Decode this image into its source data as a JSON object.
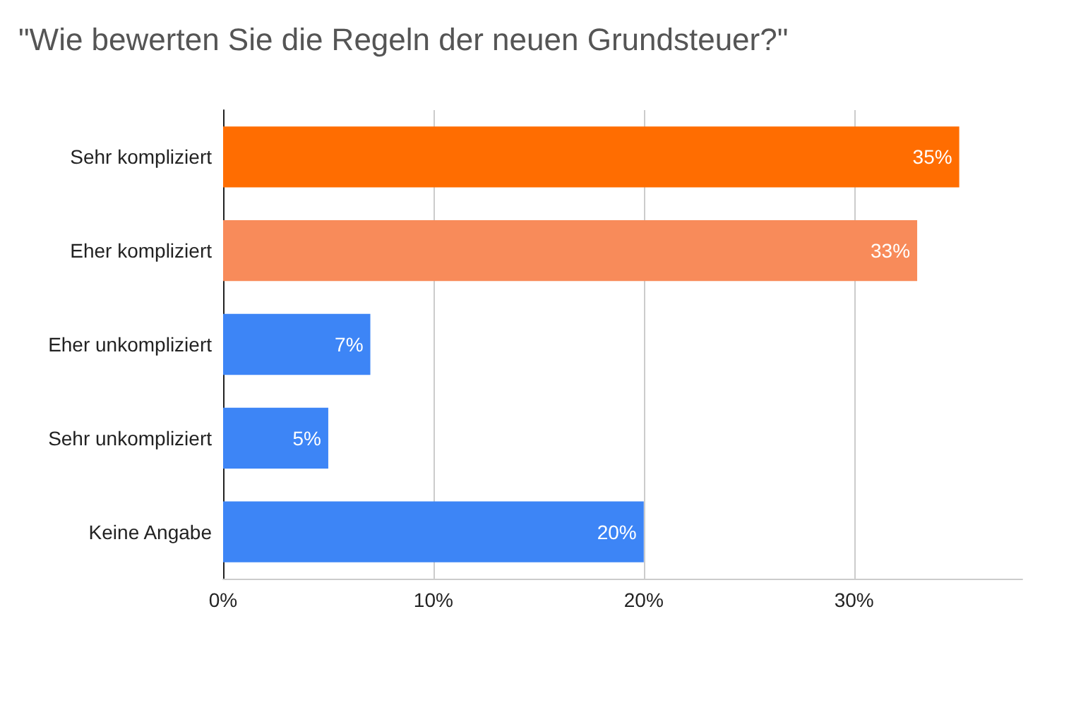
{
  "chart_data": {
    "type": "bar",
    "orientation": "horizontal",
    "title": "\"Wie bewerten Sie die Regeln der neuen Grundsteuer?\"",
    "categories": [
      "Sehr kompliziert",
      "Eher kompliziert",
      "Eher unkompliziert",
      "Sehr unkompliziert",
      "Keine Angabe"
    ],
    "values": [
      35,
      33,
      7,
      5,
      20
    ],
    "colors": [
      "#ff6d01",
      "#f88b5a",
      "#3d85f6",
      "#3d85f6",
      "#3d85f6"
    ],
    "value_labels": [
      "35%",
      "33%",
      "7%",
      "5%",
      "20%"
    ],
    "xlim": [
      0,
      38
    ],
    "xticks": [
      {
        "value": 0,
        "label": "0%"
      },
      {
        "value": 10,
        "label": "10%"
      },
      {
        "value": 20,
        "label": "20%"
      },
      {
        "value": 30,
        "label": "30%"
      }
    ],
    "grid": "x"
  }
}
